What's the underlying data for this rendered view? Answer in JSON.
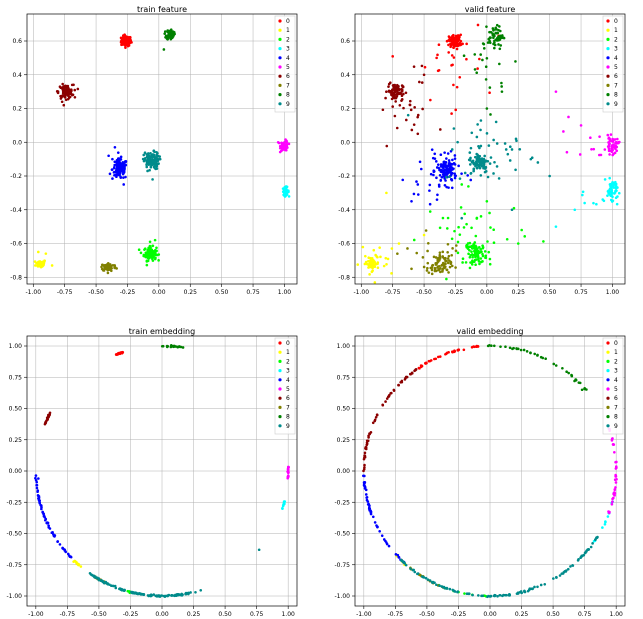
{
  "colors": [
    "#ff0000",
    "#ffff00",
    "#00ff00",
    "#00ffff",
    "#0000ff",
    "#ff00ff",
    "#8b0000",
    "#808000",
    "#008000",
    "#008b8b"
  ],
  "legend_labels": [
    "0",
    "1",
    "2",
    "3",
    "4",
    "5",
    "6",
    "7",
    "8",
    "9"
  ],
  "chart_data": [
    {
      "type": "scatter",
      "title": "train feature",
      "grid": true,
      "legend_position": "top-right",
      "xlim": [
        -1.05,
        1.1
      ],
      "ylim": [
        -0.84,
        0.76
      ],
      "xticks": [
        -1.0,
        -0.75,
        -0.5,
        -0.25,
        0.0,
        0.25,
        0.5,
        0.75,
        1.0
      ],
      "xtick_labels": [
        "-1.00",
        "-0.75",
        "-0.50",
        "-0.25",
        "0.00",
        "0.25",
        "0.50",
        "0.75",
        "1.00"
      ],
      "yticks": [
        -0.8,
        -0.6,
        -0.4,
        -0.2,
        0.0,
        0.2,
        0.4,
        0.6
      ],
      "ytick_labels": [
        "-0.8",
        "-0.6",
        "-0.4",
        "-0.2",
        "0.0",
        "0.2",
        "0.4",
        "0.6"
      ],
      "series": [
        {
          "name": "0",
          "clusters": [
            [
              -0.26,
              0.6,
              0.02,
              0.015,
              120
            ]
          ],
          "points": []
        },
        {
          "name": "1",
          "clusters": [
            [
              -0.94,
              -0.72,
              0.02,
              0.012,
              50
            ]
          ],
          "points": [
            [
              -0.96,
              -0.65
            ],
            [
              -0.9,
              -0.66
            ],
            [
              -0.85,
              -0.73
            ]
          ]
        },
        {
          "name": "2",
          "clusters": [
            [
              -0.07,
              -0.66,
              0.025,
              0.02,
              100
            ]
          ],
          "points": [
            [
              -0.07,
              -0.59
            ],
            [
              -0.03,
              -0.58
            ]
          ]
        },
        {
          "name": "3",
          "clusters": [
            [
              1.01,
              -0.29,
              0.012,
              0.012,
              50
            ]
          ],
          "points": []
        },
        {
          "name": "4",
          "clusters": [
            [
              -0.31,
              -0.16,
              0.03,
              0.03,
              120
            ]
          ],
          "points": [
            [
              -0.35,
              -0.03
            ],
            [
              -0.37,
              -0.1
            ],
            [
              -0.4,
              -0.08
            ],
            [
              -0.28,
              -0.25
            ]
          ]
        },
        {
          "name": "5",
          "clusters": [
            [
              1.0,
              -0.02,
              0.015,
              0.015,
              60
            ]
          ],
          "points": [
            [
              0.95,
              0.0
            ]
          ]
        },
        {
          "name": "6",
          "clusters": [
            [
              -0.74,
              0.3,
              0.03,
              0.02,
              100
            ]
          ],
          "points": [
            [
              -0.77,
              0.24
            ],
            [
              -0.69,
              0.34
            ]
          ]
        },
        {
          "name": "7",
          "clusters": [
            [
              -0.4,
              -0.74,
              0.03,
              0.012,
              80
            ]
          ],
          "points": []
        },
        {
          "name": "8",
          "clusters": [
            [
              0.09,
              0.64,
              0.015,
              0.015,
              70
            ]
          ],
          "points": [
            [
              0.04,
              0.55
            ],
            [
              0.07,
              0.61
            ]
          ]
        },
        {
          "name": "9",
          "clusters": [
            [
              -0.06,
              -0.11,
              0.03,
              0.025,
              110
            ]
          ],
          "points": [
            [
              -0.05,
              -0.22
            ],
            [
              -0.09,
              -0.17
            ],
            [
              -0.04,
              -0.05
            ]
          ]
        }
      ]
    },
    {
      "type": "scatter",
      "title": "valid feature",
      "grid": true,
      "legend_position": "top-right",
      "xlim": [
        -1.05,
        1.1
      ],
      "ylim": [
        -0.84,
        0.76
      ],
      "xticks": [
        -1.0,
        -0.75,
        -0.5,
        -0.25,
        0.0,
        0.25,
        0.5,
        0.75,
        1.0
      ],
      "xtick_labels": [
        "-1.00",
        "-0.75",
        "-0.50",
        "-0.25",
        "0.00",
        "0.25",
        "0.50",
        "0.75",
        "1.00"
      ],
      "yticks": [
        -0.8,
        -0.6,
        -0.4,
        -0.2,
        0.0,
        0.2,
        0.4,
        0.6
      ],
      "ytick_labels": [
        "-0.8",
        "-0.6",
        "-0.4",
        "-0.2",
        "0.0",
        "0.2",
        "0.4",
        "0.6"
      ],
      "series": [
        {
          "name": "0",
          "clusters": [
            [
              -0.25,
              0.6,
              0.025,
              0.018,
              100
            ],
            [
              -0.3,
              0.45,
              0.15,
              0.15,
              25
            ]
          ],
          "points": [
            [
              -0.4,
              0.5
            ],
            [
              -0.45,
              0.25
            ]
          ]
        },
        {
          "name": "1",
          "clusters": [
            [
              -0.92,
              -0.72,
              0.03,
              0.02,
              40
            ],
            [
              -0.85,
              -0.7,
              0.08,
              0.05,
              20
            ]
          ],
          "points": [
            [
              -0.8,
              -0.3
            ],
            [
              -0.7,
              -0.6
            ],
            [
              -0.5,
              -0.55
            ]
          ]
        },
        {
          "name": "2",
          "clusters": [
            [
              -0.08,
              -0.66,
              0.04,
              0.03,
              80
            ],
            [
              -0.1,
              -0.55,
              0.2,
              0.12,
              40
            ]
          ],
          "points": [
            [
              -0.2,
              -0.25
            ],
            [
              0.25,
              -0.6
            ],
            [
              0.0,
              -0.35
            ]
          ]
        },
        {
          "name": "3",
          "clusters": [
            [
              1.0,
              -0.28,
              0.02,
              0.03,
              50
            ],
            [
              0.85,
              -0.35,
              0.08,
              0.05,
              10
            ]
          ],
          "points": [
            [
              0.7,
              -0.4
            ],
            [
              0.55,
              -0.5
            ]
          ]
        },
        {
          "name": "4",
          "clusters": [
            [
              -0.32,
              -0.17,
              0.04,
              0.04,
              110
            ],
            [
              -0.4,
              -0.2,
              0.12,
              0.12,
              30
            ]
          ],
          "points": [
            [
              -0.55,
              -0.25
            ],
            [
              -0.6,
              -0.35
            ]
          ]
        },
        {
          "name": "5",
          "clusters": [
            [
              1.0,
              -0.02,
              0.025,
              0.025,
              50
            ],
            [
              0.85,
              0.0,
              0.08,
              0.05,
              10
            ]
          ],
          "points": [
            [
              0.75,
              0.1
            ],
            [
              0.65,
              0.15
            ],
            [
              0.55,
              0.3
            ]
          ]
        },
        {
          "name": "6",
          "clusters": [
            [
              -0.73,
              0.3,
              0.03,
              0.025,
              80
            ],
            [
              -0.65,
              0.2,
              0.1,
              0.12,
              25
            ]
          ],
          "points": [
            [
              -0.5,
              0.4
            ],
            [
              -0.55,
              0.05
            ]
          ]
        },
        {
          "name": "7",
          "clusters": [
            [
              -0.38,
              -0.73,
              0.05,
              0.03,
              70
            ],
            [
              -0.35,
              -0.65,
              0.15,
              0.06,
              20
            ]
          ],
          "points": [
            [
              -0.6,
              -0.75
            ]
          ]
        },
        {
          "name": "8",
          "clusters": [
            [
              0.07,
              0.63,
              0.03,
              0.03,
              60
            ],
            [
              0.08,
              0.45,
              0.1,
              0.12,
              20
            ]
          ],
          "points": [
            [
              0.0,
              0.2
            ],
            [
              0.12,
              0.3
            ]
          ]
        },
        {
          "name": "9",
          "clusters": [
            [
              -0.06,
              -0.12,
              0.04,
              0.03,
              90
            ],
            [
              0.05,
              -0.05,
              0.2,
              0.1,
              40
            ]
          ],
          "points": [
            [
              0.35,
              -0.1
            ],
            [
              0.5,
              -0.2
            ],
            [
              0.2,
              -0.4
            ],
            [
              -0.2,
              -0.45
            ]
          ]
        }
      ]
    },
    {
      "type": "scatter",
      "title": "train embedding",
      "grid": true,
      "legend_position": "top-right",
      "xlim": [
        -1.07,
        1.07
      ],
      "ylim": [
        -1.08,
        1.08
      ],
      "xticks": [
        -1.0,
        -0.75,
        -0.5,
        -0.25,
        0.0,
        0.25,
        0.5,
        0.75,
        1.0
      ],
      "xtick_labels": [
        "-1.00",
        "-0.75",
        "-0.50",
        "-0.25",
        "0.00",
        "0.25",
        "0.50",
        "0.75",
        "1.00"
      ],
      "yticks": [
        -1.0,
        -0.75,
        -0.5,
        -0.25,
        0.0,
        0.25,
        0.5,
        0.75,
        1.0
      ],
      "ytick_labels": [
        "-1.00",
        "-0.75",
        "-0.50",
        "-0.25",
        "0.00",
        "0.25",
        "0.50",
        "0.75",
        "1.00"
      ],
      "series": [
        {
          "name": "0",
          "arcs": [
            [
              108,
              112,
              25
            ]
          ],
          "points": []
        },
        {
          "name": "1",
          "arcs": [
            [
              225,
              230,
              15
            ]
          ],
          "points": []
        },
        {
          "name": "2",
          "arcs": [
            [
              254,
              256,
              5
            ]
          ],
          "points": []
        },
        {
          "name": "3",
          "arcs": [
            [
              342,
              346,
              12
            ]
          ],
          "points": []
        },
        {
          "name": "4",
          "arcs": [
            [
              182,
              225,
              60
            ]
          ],
          "points": [
            [
              -0.98,
              -0.06
            ]
          ]
        },
        {
          "name": "5",
          "arcs": [
            [
              356,
              362,
              15
            ]
          ],
          "points": []
        },
        {
          "name": "6",
          "arcs": [
            [
              152,
              158,
              20
            ]
          ],
          "points": []
        },
        {
          "name": "7",
          "arcs": [
            [
              238,
              245,
              8
            ]
          ],
          "points": []
        },
        {
          "name": "8",
          "arcs": [
            [
              80,
              90,
              20
            ]
          ],
          "points": []
        },
        {
          "name": "9",
          "arcs": [
            [
              235,
              282,
              140
            ],
            [
              282,
              290,
              6
            ]
          ],
          "points": [
            [
              0.77,
              -0.63
            ]
          ]
        }
      ]
    },
    {
      "type": "scatter",
      "title": "valid embedding",
      "grid": true,
      "legend_position": "top-right",
      "xlim": [
        -1.07,
        1.07
      ],
      "ylim": [
        -1.08,
        1.08
      ],
      "xticks": [
        -1.0,
        -0.75,
        -0.5,
        -0.25,
        0.0,
        0.25,
        0.5,
        0.75,
        1.0
      ],
      "xtick_labels": [
        "-1.00",
        "-0.75",
        "-0.50",
        "-0.25",
        "0.00",
        "0.25",
        "0.50",
        "0.75",
        "1.00"
      ],
      "yticks": [
        -1.0,
        -0.75,
        -0.5,
        -0.25,
        0.0,
        0.25,
        0.5,
        0.75,
        1.0
      ],
      "ytick_labels": [
        "-1.00",
        "-0.75",
        "-0.50",
        "-0.25",
        "0.00",
        "0.25",
        "0.50",
        "0.75",
        "1.00"
      ],
      "series": [
        {
          "name": "0",
          "arcs": [
            [
              95,
              125,
              40
            ]
          ],
          "points": []
        },
        {
          "name": "1",
          "arcs": [
            [
              222,
              232,
              10
            ]
          ],
          "points": []
        },
        {
          "name": "2",
          "arcs": [
            [
              245,
              270,
              10
            ]
          ],
          "points": []
        },
        {
          "name": "3",
          "arcs": [
            [
              325,
              350,
              15
            ]
          ],
          "points": []
        },
        {
          "name": "4",
          "arcs": [
            [
              180,
              228,
              50
            ]
          ],
          "points": []
        },
        {
          "name": "5",
          "arcs": [
            [
              340,
              380,
              40
            ]
          ],
          "points": []
        },
        {
          "name": "6",
          "arcs": [
            [
              125,
              180,
              60
            ]
          ],
          "points": []
        },
        {
          "name": "7",
          "arcs": [
            [
              230,
              250,
              15
            ]
          ],
          "points": []
        },
        {
          "name": "8",
          "arcs": [
            [
              40,
              92,
              40
            ]
          ],
          "points": [
            [
              0.67,
              0.72
            ],
            [
              0.73,
              0.65
            ]
          ]
        },
        {
          "name": "9",
          "arcs": [
            [
              225,
              330,
              130
            ]
          ],
          "points": []
        }
      ]
    }
  ]
}
